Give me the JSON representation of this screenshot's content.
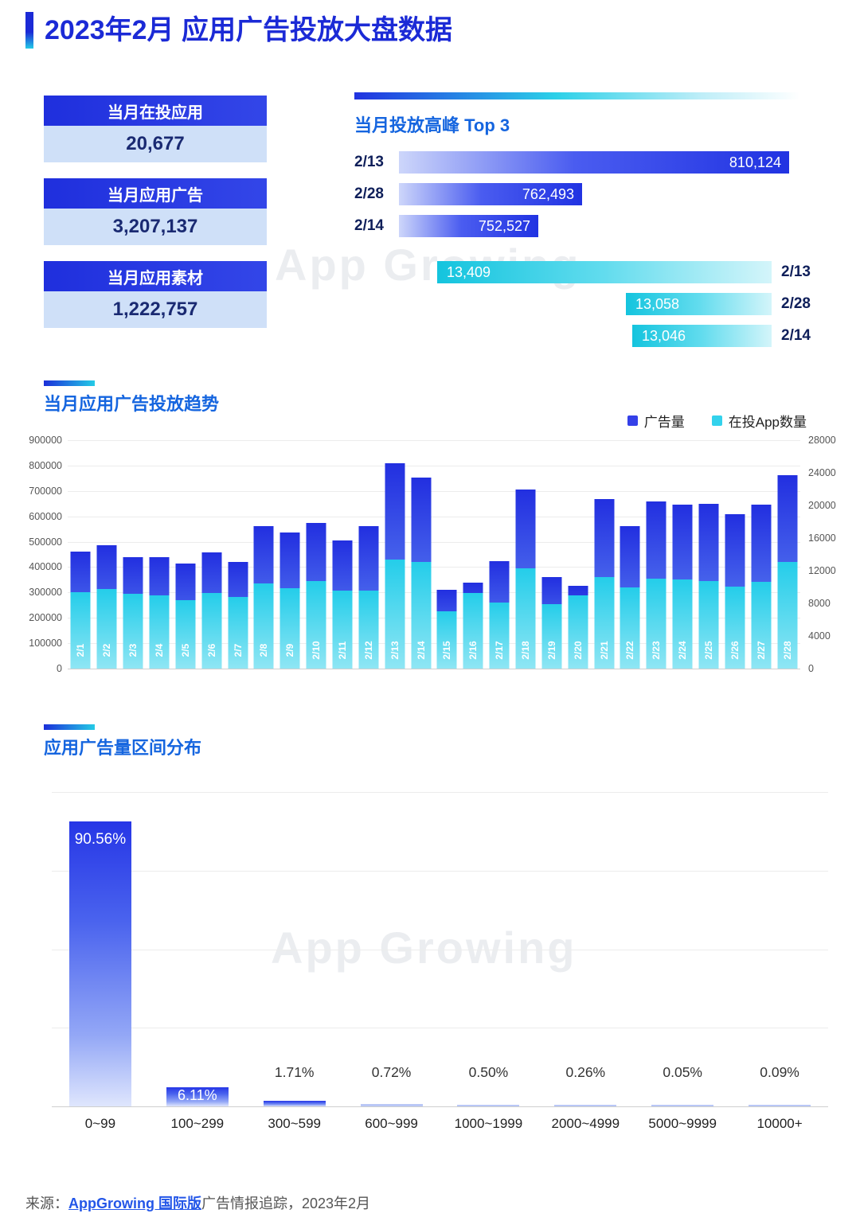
{
  "page_title": "2023年2月 应用广告投放大盘数据",
  "watermark": "App Growing",
  "colors": {
    "title_blue": "#1b2ad6",
    "heading_blue": "#1565df",
    "primary_blue": "#2335e2",
    "accent_cyan": "#2bd0e8",
    "light_blue_bg": "#cfe0f8",
    "link_blue": "#2356e8"
  },
  "stats": {
    "cards": [
      {
        "label": "当月在投应用",
        "value": "20,677"
      },
      {
        "label": "当月应用广告",
        "value": "3,207,137"
      },
      {
        "label": "当月应用素材",
        "value": "1,222,757"
      }
    ]
  },
  "footer": {
    "prefix": "来源：",
    "link_text": "AppGrowing 国际版",
    "suffix": "广告情报追踪，2023年2月"
  },
  "chart_data": [
    {
      "type": "bar",
      "orientation": "horizontal",
      "title": "当月投放高峰 Top 3",
      "metric": "广告量",
      "categories": [
        "2/13",
        "2/28",
        "2/14"
      ],
      "values": [
        810124,
        762493,
        752527
      ],
      "value_labels": [
        "810,124",
        "762,493",
        "752,527"
      ]
    },
    {
      "type": "bar",
      "orientation": "horizontal",
      "title": "当月投放高峰 Top 3",
      "metric": "在投App数量",
      "categories": [
        "2/13",
        "2/28",
        "2/14"
      ],
      "values": [
        13409,
        13058,
        13046
      ],
      "value_labels": [
        "13,409",
        "13,058",
        "13,046"
      ]
    },
    {
      "type": "bar",
      "title": "当月应用广告投放趋势",
      "categories": [
        "2/1",
        "2/2",
        "2/3",
        "2/4",
        "2/5",
        "2/6",
        "2/7",
        "2/8",
        "2/9",
        "2/10",
        "2/11",
        "2/12",
        "2/13",
        "2/14",
        "2/15",
        "2/16",
        "2/17",
        "2/18",
        "2/19",
        "2/20",
        "2/21",
        "2/22",
        "2/23",
        "2/24",
        "2/25",
        "2/26",
        "2/27",
        "2/28"
      ],
      "series": [
        {
          "name": "广告量",
          "axis": "left",
          "values": [
            460000,
            485000,
            440000,
            440000,
            415000,
            458000,
            420000,
            560000,
            535000,
            575000,
            505000,
            560000,
            810124,
            752527,
            310000,
            340000,
            425000,
            705000,
            360000,
            325000,
            667000,
            560000,
            660000,
            645000,
            650000,
            610000,
            647000,
            762493
          ]
        },
        {
          "name": "在投App数量",
          "axis": "right",
          "values": [
            9400,
            9800,
            9200,
            9000,
            8400,
            9300,
            8800,
            10400,
            9900,
            10700,
            9600,
            9600,
            13409,
            13046,
            7000,
            9300,
            8100,
            12300,
            7900,
            9000,
            11200,
            10000,
            11000,
            10900,
            10700,
            10100,
            10600,
            13058
          ]
        }
      ],
      "left_axis": {
        "min": 0,
        "max": 900000,
        "step": 100000
      },
      "right_axis": {
        "min": 0,
        "max": 28000,
        "step": 4000
      },
      "grid": true,
      "legend_position": "top-right"
    },
    {
      "type": "bar",
      "title": "应用广告量区间分布",
      "categories": [
        "0~99",
        "100~299",
        "300~599",
        "600~999",
        "1000~1999",
        "2000~4999",
        "5000~9999",
        "10000+"
      ],
      "values": [
        90.56,
        6.11,
        1.71,
        0.72,
        0.5,
        0.26,
        0.05,
        0.09
      ],
      "value_labels": [
        "90.56%",
        "6.11%",
        "1.71%",
        "0.72%",
        "0.50%",
        "0.26%",
        "0.05%",
        "0.09%"
      ],
      "ylim": [
        0,
        100
      ],
      "grid": true
    }
  ]
}
